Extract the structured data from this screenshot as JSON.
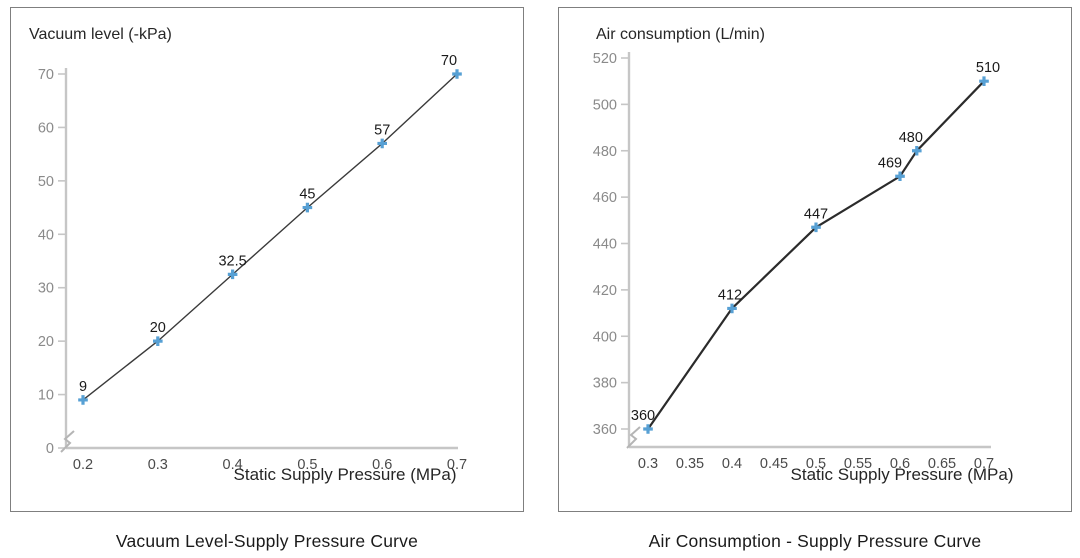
{
  "chart_data": [
    {
      "type": "line",
      "axis_title": "Vacuum level (-kPa)",
      "xlabel": "Static Supply Pressure (MPa)",
      "caption": "Vacuum Level-Supply Pressure Curve",
      "xlim": [
        0.2,
        0.7
      ],
      "ylim": [
        0,
        70
      ],
      "x_tick_values": [
        0.2,
        0.3,
        0.4,
        0.5,
        0.6,
        0.7
      ],
      "x_tick_labels": [
        "0.2",
        "0.3",
        "0.4",
        "0.5",
        "0.6",
        "0.7"
      ],
      "y_ticks": [
        0,
        10,
        20,
        30,
        40,
        50,
        60,
        70
      ],
      "grid": false,
      "legend_position": "none",
      "axis_break": true,
      "line_color": "#3a3a3a",
      "marker_color": "#57a0d4",
      "points": [
        {
          "x": 0.2,
          "y": 9,
          "label": "9"
        },
        {
          "x": 0.3,
          "y": 20,
          "label": "20"
        },
        {
          "x": 0.4,
          "y": 32.5,
          "label": "32.5"
        },
        {
          "x": 0.5,
          "y": 45,
          "label": "45"
        },
        {
          "x": 0.6,
          "y": 57,
          "label": "57"
        },
        {
          "x": 0.7,
          "y": 70,
          "label": "70",
          "ldx": -8
        }
      ]
    },
    {
      "type": "line",
      "axis_title": "Air consumption (L/min)",
      "xlabel": "Static Supply Pressure (MPa)",
      "caption": "Air Consumption - Supply Pressure Curve",
      "xlim": [
        0.3,
        0.7
      ],
      "ylim": [
        360,
        520
      ],
      "x_tick_values": [
        0.3,
        0.35,
        0.4,
        0.45,
        0.5,
        0.55,
        0.6,
        0.65,
        0.7
      ],
      "x_tick_labels": [
        "0.3",
        "0.35",
        "0.4",
        "0.45",
        "0.5",
        "0.55",
        "0.6",
        "0.65",
        "0.7"
      ],
      "y_ticks": [
        360,
        380,
        400,
        420,
        440,
        460,
        480,
        500,
        520
      ],
      "grid": false,
      "legend_position": "none",
      "axis_break": true,
      "line_color": "#2b2b2b",
      "marker_color": "#57a0d4",
      "points": [
        {
          "x": 0.3,
          "y": 360,
          "label": "360",
          "ldx": -5
        },
        {
          "x": 0.4,
          "y": 412,
          "label": "412",
          "ldx": -2
        },
        {
          "x": 0.5,
          "y": 447,
          "label": "447"
        },
        {
          "x": 0.6,
          "y": 469,
          "label": "469",
          "ldx": -10
        },
        {
          "x": 0.62,
          "y": 480,
          "label": "480",
          "ldx": -6
        },
        {
          "x": 0.7,
          "y": 510,
          "label": "510",
          "ldx": 4
        }
      ]
    }
  ],
  "colors": {
    "axis": "#c6c6c6",
    "tick_label_y": "#8a8a8a",
    "tick_label_x": "#4a4a4a",
    "data_label": "#1a1a1a",
    "title_text": "#262626",
    "caption_text": "#1a1a1a",
    "panel_border": "#7f7f7f",
    "background": "#ffffff"
  }
}
